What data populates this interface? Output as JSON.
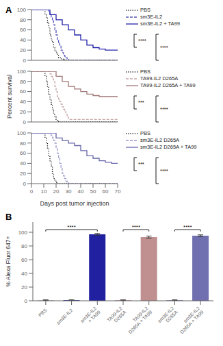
{
  "chart_data": [
    {
      "type": "step",
      "title": "A",
      "legend": "right",
      "tick_labels": "y",
      "xlim": [
        0,
        70
      ],
      "xticks": [
        0,
        10,
        20,
        30,
        40,
        50,
        60,
        70
      ],
      "ylim": [
        0,
        100
      ],
      "yticks": [
        0,
        20,
        40,
        60,
        80,
        100
      ],
      "series": [
        {
          "name": "PBS",
          "color": "#111111",
          "line_style": "dotted",
          "x": [
            0,
            10,
            11,
            12,
            13,
            14,
            15,
            16,
            17,
            18,
            19,
            20,
            21,
            22,
            23,
            24,
            25,
            26,
            27,
            70
          ],
          "values": [
            100,
            100,
            90,
            85,
            75,
            65,
            50,
            40,
            35,
            25,
            20,
            15,
            10,
            5,
            5,
            3,
            2,
            1,
            0,
            0
          ]
        },
        {
          "name": "sm3E-IL2",
          "color": "#5555bb",
          "line_style": "dashed",
          "x": [
            0,
            13,
            14,
            15,
            16,
            17,
            18,
            19,
            20,
            21,
            22,
            23,
            24,
            25,
            26,
            27,
            28,
            29,
            30,
            70
          ],
          "values": [
            100,
            100,
            95,
            90,
            85,
            80,
            70,
            60,
            50,
            40,
            35,
            30,
            20,
            15,
            10,
            8,
            5,
            3,
            0,
            0
          ]
        },
        {
          "name": "sm3E-IL2 + TA99",
          "color": "#2222aa",
          "line_style": "solid",
          "x": [
            0,
            14,
            15,
            20,
            25,
            30,
            35,
            40,
            45,
            50,
            55,
            60,
            65,
            70
          ],
          "values": [
            100,
            100,
            90,
            80,
            70,
            60,
            50,
            40,
            30,
            25,
            22,
            20,
            20,
            20
          ]
        }
      ],
      "annotations": [
        {
          "text": "****",
          "between": [
            "sm3E-IL2",
            "sm3E-IL2 + TA99"
          ]
        },
        {
          "text": "****",
          "between": [
            "PBS",
            "sm3E-IL2 + TA99"
          ]
        }
      ]
    },
    {
      "type": "step",
      "y_label": "Percent survival",
      "legend": "right",
      "tick_labels": "y",
      "xlim": [
        0,
        70
      ],
      "xticks": [
        0,
        10,
        20,
        30,
        40,
        50,
        60,
        70
      ],
      "ylim": [
        0,
        100
      ],
      "yticks": [
        0,
        20,
        40,
        60,
        80,
        100
      ],
      "series": [
        {
          "name": "PBS",
          "color": "#111111",
          "line_style": "dotted",
          "x": [
            0,
            10,
            11,
            12,
            13,
            14,
            15,
            16,
            17,
            18,
            19,
            20,
            21,
            22,
            23,
            70
          ],
          "values": [
            100,
            100,
            90,
            80,
            70,
            55,
            45,
            35,
            25,
            15,
            10,
            5,
            3,
            1,
            0,
            0
          ]
        },
        {
          "name": "TA99-IL2 D265A",
          "color": "#c8a8a8",
          "line_style": "dashed",
          "x": [
            0,
            14,
            15,
            16,
            17,
            18,
            19,
            20,
            21,
            22,
            23,
            24,
            25,
            26,
            27,
            28,
            29,
            30,
            70
          ],
          "values": [
            100,
            100,
            95,
            90,
            85,
            80,
            70,
            60,
            50,
            45,
            40,
            35,
            30,
            25,
            20,
            15,
            10,
            5,
            5
          ]
        },
        {
          "name": "TA99-IL2 D265A + TA99",
          "color": "#a07878",
          "line_style": "solid",
          "x": [
            0,
            15,
            20,
            25,
            30,
            35,
            40,
            45,
            50,
            55,
            60,
            65,
            70
          ],
          "values": [
            100,
            100,
            90,
            80,
            70,
            65,
            60,
            55,
            52,
            50,
            50,
            50,
            50
          ]
        }
      ],
      "annotations": [
        {
          "text": "***",
          "between": [
            "TA99-IL2 D265A",
            "TA99-IL2 D265A + TA99"
          ]
        },
        {
          "text": "****",
          "between": [
            "PBS",
            "TA99-IL2 D265A + TA99"
          ]
        }
      ]
    },
    {
      "type": "step",
      "x_label": "Days post tumor injection",
      "legend": "right",
      "xlim": [
        0,
        70
      ],
      "xticks": [
        0,
        10,
        20,
        30,
        40,
        50,
        60,
        70
      ],
      "ylim": [
        0,
        100
      ],
      "yticks": [
        0,
        20,
        40,
        60,
        80,
        100
      ],
      "series": [
        {
          "name": "PBS",
          "color": "#111111",
          "line_style": "dotted",
          "x": [
            0,
            10,
            11,
            12,
            13,
            14,
            15,
            16,
            17,
            18,
            19,
            20,
            21,
            70
          ],
          "values": [
            100,
            100,
            90,
            80,
            70,
            55,
            45,
            35,
            20,
            10,
            5,
            2,
            0,
            0
          ]
        },
        {
          "name": "sm3E-IL2 D265A",
          "color": "#9999cc",
          "line_style": "dashed",
          "x": [
            0,
            15,
            16,
            17,
            18,
            19,
            20,
            21,
            22,
            23,
            24,
            25,
            26,
            27,
            28,
            29,
            30,
            70
          ],
          "values": [
            100,
            100,
            95,
            90,
            85,
            80,
            70,
            60,
            50,
            40,
            30,
            20,
            15,
            10,
            5,
            3,
            0,
            0
          ]
        },
        {
          "name": "sm3E-IL2 D265A + TA99",
          "color": "#6666aa",
          "line_style": "solid",
          "x": [
            0,
            15,
            20,
            25,
            30,
            35,
            40,
            45,
            50,
            55,
            60,
            65,
            70
          ],
          "values": [
            100,
            100,
            90,
            85,
            80,
            75,
            65,
            55,
            50,
            45,
            42,
            40,
            40
          ]
        }
      ],
      "annotations": [
        {
          "text": "***",
          "between": [
            "sm3E-IL2 D265A",
            "sm3E-IL2 D265A + TA99"
          ]
        },
        {
          "text": "****",
          "between": [
            "PBS",
            "sm3E-IL2 D265A + TA99"
          ]
        }
      ]
    },
    {
      "type": "bar",
      "title": "B",
      "y_label": "% Alexa Fluor 647+",
      "categories": [
        "PBS",
        "sm3E-IL2",
        "sm3E-IL2\n+ TA99",
        "TA99-IL2\nD265A",
        "TA99-IL2\nD265A + TA99",
        "sm3E-IL2\nD265A",
        "sm3E-IL2\nD265A + TA99"
      ],
      "values": [
        1,
        1,
        97,
        1,
        93,
        1,
        95
      ],
      "errors": [
        0.3,
        0.3,
        1.2,
        0.3,
        1.5,
        0.3,
        1.2
      ],
      "colors": [
        "#cccccc",
        "#3535a0",
        "#2020a0",
        "#d4a8a8",
        "#c09090",
        "#9090c0",
        "#7070b0"
      ],
      "ylim": [
        0,
        115
      ],
      "yticks": [
        0,
        20,
        40,
        60,
        80,
        100
      ],
      "annotations": [
        {
          "text": "****",
          "between": [
            "PBS",
            "sm3E-IL2\n+ TA99"
          ]
        },
        {
          "text": "****",
          "between": [
            "TA99-IL2\nD265A",
            "TA99-IL2\nD265A + TA99"
          ]
        },
        {
          "text": "****",
          "between": [
            "sm3E-IL2\nD265A",
            "sm3E-IL2\nD265A + TA99"
          ]
        }
      ]
    }
  ]
}
